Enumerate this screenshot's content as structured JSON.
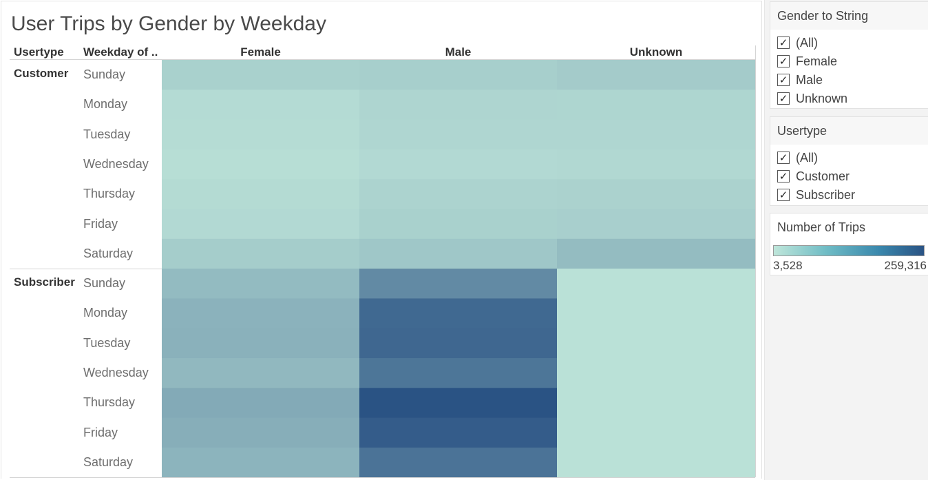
{
  "chart_data": {
    "type": "heatmap",
    "title": "User Trips by Gender by Weekday",
    "row_headers": [
      "Usertype",
      "Weekday of .."
    ],
    "columns": [
      "Female",
      "Male",
      "Unknown"
    ],
    "groups": [
      {
        "usertype": "Customer",
        "rows": [
          {
            "weekday": "Sunday",
            "values": [
              30000,
              33000,
              38000
            ]
          },
          {
            "weekday": "Monday",
            "values": [
              15000,
              24000,
              23000
            ]
          },
          {
            "weekday": "Tuesday",
            "values": [
              14000,
              22000,
              22000
            ]
          },
          {
            "weekday": "Wednesday",
            "values": [
              12000,
              18000,
              20000
            ]
          },
          {
            "weekday": "Thursday",
            "values": [
              16000,
              26000,
              28000
            ]
          },
          {
            "weekday": "Friday",
            "values": [
              18000,
              30000,
              32000
            ]
          },
          {
            "weekday": "Saturday",
            "values": [
              36000,
              45000,
              62000
            ]
          }
        ]
      },
      {
        "usertype": "Subscriber",
        "rows": [
          {
            "weekday": "Sunday",
            "values": [
              64000,
              150000,
              8000
            ]
          },
          {
            "weekday": "Monday",
            "values": [
              78000,
              215000,
              8000
            ]
          },
          {
            "weekday": "Tuesday",
            "values": [
              80000,
              218000,
              8000
            ]
          },
          {
            "weekday": "Wednesday",
            "values": [
              68000,
              190000,
              8000
            ]
          },
          {
            "weekday": "Thursday",
            "values": [
              92000,
              259316,
              8000
            ]
          },
          {
            "weekday": "Friday",
            "values": [
              85000,
              240000,
              8000
            ]
          },
          {
            "weekday": "Saturday",
            "values": [
              76000,
              195000,
              8000
            ]
          }
        ]
      }
    ],
    "color_range": {
      "min": 3528,
      "max": 259316,
      "min_color": "#bfe6da",
      "max_color": "#2a5384"
    }
  },
  "side_panel": {
    "gender_filter": {
      "title": "Gender to String",
      "items": [
        "(All)",
        "Female",
        "Male",
        "Unknown"
      ]
    },
    "usertype_filter": {
      "title": "Usertype",
      "items": [
        "(All)",
        "Customer",
        "Subscriber"
      ]
    },
    "legend": {
      "title": "Number of Trips",
      "min_label": "3,528",
      "max_label": "259,316"
    },
    "check_icon": "checkmark-icon"
  }
}
